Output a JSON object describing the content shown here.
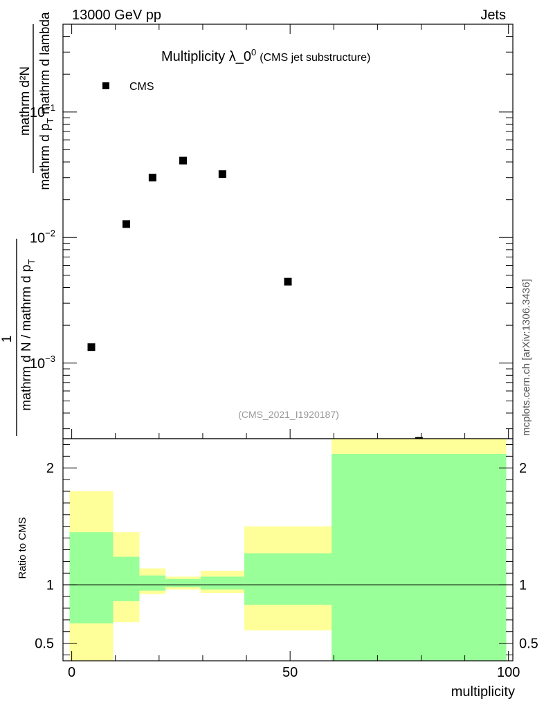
{
  "header": {
    "left": "13000 GeV pp",
    "right": "Jets"
  },
  "side_note": "mcplots.cern.ch [arXiv:1306.3436]",
  "watermark": "(CMS_2021_I1920187)",
  "colors": {
    "band_outer": "#ffff99",
    "band_inner": "#99ff99",
    "marker": "#000000",
    "watermark": "#999999"
  },
  "chart_data": [
    {
      "type": "scatter",
      "title_main": "Multiplicity λ_0",
      "title_sup": "0",
      "title_sub": "(CMS jet substructure)",
      "ylabel_numerator": "mathrm d²N",
      "ylabel_denominator_1": "mathrm d p",
      "ylabel_denominator_sub_1": "T",
      "ylabel_denominator_2": " mathrm d lambda",
      "ylabel_frac_num": "1",
      "ylabel_frac_den_1": "mathrm d N / mathrm d p",
      "ylabel_frac_den_sub": "T",
      "yscale": "log",
      "ylim": [
        0.00025,
        0.5
      ],
      "xlim": [
        -2,
        101
      ],
      "y_ticks": [
        {
          "v": 0.001,
          "label": "10",
          "exp": "−3"
        },
        {
          "v": 0.01,
          "label": "10",
          "exp": "−2"
        },
        {
          "v": 0.1,
          "label": "10",
          "exp": "−1"
        }
      ],
      "legend": {
        "position": "top-left",
        "label": "CMS"
      },
      "series": [
        {
          "name": "CMS",
          "x": [
            4.5,
            12.5,
            18.5,
            25.5,
            34.5,
            49.5,
            79.5
          ],
          "y": [
            0.00134,
            0.0128,
            0.03,
            0.041,
            0.032,
            0.00445,
            0.00024
          ]
        }
      ]
    },
    {
      "type": "area",
      "ylabel": "Ratio to CMS",
      "xlabel": "multiplicity",
      "xlim": [
        -2,
        101
      ],
      "ylim": [
        0.35,
        2.25
      ],
      "x_ticks": [
        {
          "v": 0,
          "label": "0"
        },
        {
          "v": 50,
          "label": "50"
        },
        {
          "v": 100,
          "label": "100"
        }
      ],
      "y_ticks": [
        {
          "v": 0.5,
          "label": "0.5"
        },
        {
          "v": 1,
          "label": "1"
        },
        {
          "v": 2,
          "label": "2"
        }
      ],
      "reference_line": 1,
      "bins": [
        {
          "x0": -0.5,
          "x1": 9.5,
          "outer": [
            0.35,
            1.8
          ],
          "inner": [
            0.67,
            1.45
          ]
        },
        {
          "x0": 9.5,
          "x1": 15.5,
          "outer": [
            0.68,
            1.45
          ],
          "inner": [
            0.86,
            1.24
          ]
        },
        {
          "x0": 15.5,
          "x1": 21.5,
          "outer": [
            0.92,
            1.14
          ],
          "inner": [
            0.95,
            1.08
          ]
        },
        {
          "x0": 21.5,
          "x1": 29.5,
          "outer": [
            0.96,
            1.07
          ],
          "inner": [
            0.98,
            1.05
          ]
        },
        {
          "x0": 29.5,
          "x1": 39.5,
          "outer": [
            0.93,
            1.12
          ],
          "inner": [
            0.96,
            1.07
          ]
        },
        {
          "x0": 39.5,
          "x1": 59.5,
          "outer": [
            0.61,
            1.5
          ],
          "inner": [
            0.83,
            1.27
          ]
        },
        {
          "x0": 59.5,
          "x1": 99.5,
          "outer": [
            0.35,
            2.25
          ],
          "inner": [
            0.35,
            2.12
          ]
        }
      ]
    }
  ]
}
